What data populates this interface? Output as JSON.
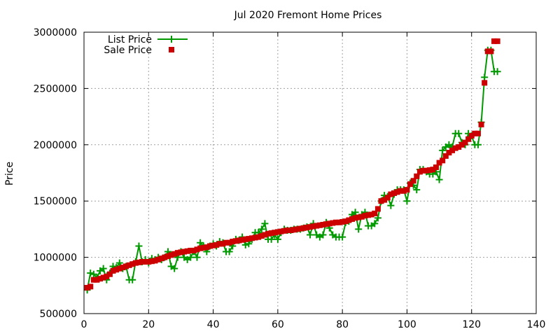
{
  "chart_data": {
    "type": "line",
    "title": "Jul 2020 Fremont Home Prices",
    "xlabel": "",
    "ylabel": "Price",
    "xlim": [
      0,
      140
    ],
    "ylim": [
      500000,
      3000000
    ],
    "x_ticks": [
      0,
      20,
      40,
      60,
      80,
      100,
      120,
      140
    ],
    "y_ticks": [
      500000,
      1000000,
      1500000,
      2000000,
      2500000,
      3000000
    ],
    "grid": true,
    "legend_position": "top-left",
    "series": [
      {
        "name": "List Price",
        "style": "line-with-plus-markers",
        "color": "#009900",
        "x": [
          1,
          2,
          3,
          4,
          5,
          6,
          7,
          8,
          9,
          10,
          11,
          12,
          13,
          14,
          15,
          16,
          17,
          18,
          19,
          20,
          21,
          22,
          23,
          24,
          25,
          26,
          27,
          28,
          29,
          30,
          31,
          32,
          33,
          34,
          35,
          36,
          37,
          38,
          39,
          40,
          41,
          42,
          43,
          44,
          45,
          46,
          47,
          48,
          49,
          50,
          51,
          52,
          53,
          54,
          55,
          56,
          57,
          58,
          59,
          60,
          61,
          62,
          63,
          64,
          65,
          66,
          67,
          68,
          69,
          70,
          71,
          72,
          73,
          74,
          75,
          76,
          77,
          78,
          79,
          80,
          81,
          82,
          83,
          84,
          85,
          86,
          87,
          88,
          89,
          90,
          91,
          92,
          93,
          94,
          95,
          96,
          97,
          98,
          99,
          100,
          101,
          102,
          103,
          104,
          105,
          106,
          107,
          108,
          109,
          110,
          111,
          112,
          113,
          114,
          115,
          116,
          117,
          118,
          119,
          120,
          121,
          122,
          123,
          124,
          125,
          126,
          127,
          128
        ],
        "values": [
          710000,
          860000,
          850000,
          820000,
          880000,
          900000,
          800000,
          860000,
          920000,
          910000,
          950000,
          900000,
          920000,
          800000,
          800000,
          960000,
          1100000,
          960000,
          980000,
          950000,
          990000,
          980000,
          1000000,
          980000,
          1000000,
          1050000,
          920000,
          900000,
          1000000,
          1050000,
          1000000,
          980000,
          1000000,
          1050000,
          1000000,
          1130000,
          1100000,
          1050000,
          1100000,
          1120000,
          1100000,
          1140000,
          1130000,
          1050000,
          1050000,
          1100000,
          1160000,
          1150000,
          1180000,
          1110000,
          1120000,
          1160000,
          1220000,
          1220000,
          1250000,
          1300000,
          1160000,
          1160000,
          1200000,
          1160000,
          1220000,
          1250000,
          1240000,
          1240000,
          1250000,
          1250000,
          1250000,
          1260000,
          1270000,
          1200000,
          1300000,
          1200000,
          1180000,
          1200000,
          1310000,
          1260000,
          1200000,
          1180000,
          1180000,
          1180000,
          1310000,
          1320000,
          1380000,
          1400000,
          1250000,
          1380000,
          1400000,
          1280000,
          1280000,
          1300000,
          1350000,
          1500000,
          1550000,
          1540000,
          1460000,
          1560000,
          1600000,
          1600000,
          1600000,
          1500000,
          1660000,
          1640000,
          1600000,
          1780000,
          1780000,
          1760000,
          1740000,
          1740000,
          1760000,
          1690000,
          1950000,
          1980000,
          2000000,
          1980000,
          2100000,
          2100000,
          2020000,
          2000000,
          2100000,
          2080000,
          2000000,
          2000000,
          2200000,
          2600000,
          2840000,
          2840000,
          2650000,
          2650000
        ]
      },
      {
        "name": "Sale Price",
        "style": "square-markers",
        "color": "#cc0000",
        "x": [
          1,
          2,
          3,
          4,
          5,
          6,
          7,
          8,
          9,
          10,
          11,
          12,
          13,
          14,
          15,
          16,
          17,
          18,
          19,
          20,
          21,
          22,
          23,
          24,
          25,
          26,
          27,
          28,
          29,
          30,
          31,
          32,
          33,
          34,
          35,
          36,
          37,
          38,
          39,
          40,
          41,
          42,
          43,
          44,
          45,
          46,
          47,
          48,
          49,
          50,
          51,
          52,
          53,
          54,
          55,
          56,
          57,
          58,
          59,
          60,
          61,
          62,
          63,
          64,
          65,
          66,
          67,
          68,
          69,
          70,
          71,
          72,
          73,
          74,
          75,
          76,
          77,
          78,
          79,
          80,
          81,
          82,
          83,
          84,
          85,
          86,
          87,
          88,
          89,
          90,
          91,
          92,
          93,
          94,
          95,
          96,
          97,
          98,
          99,
          100,
          101,
          102,
          103,
          104,
          105,
          106,
          107,
          108,
          109,
          110,
          111,
          112,
          113,
          114,
          115,
          116,
          117,
          118,
          119,
          120,
          121,
          122,
          123,
          124,
          125,
          126,
          127,
          128
        ],
        "values": [
          730000,
          740000,
          800000,
          800000,
          810000,
          820000,
          830000,
          850000,
          880000,
          890000,
          900000,
          910000,
          920000,
          930000,
          940000,
          950000,
          955000,
          960000,
          960000,
          960000,
          965000,
          970000,
          980000,
          990000,
          1000000,
          1010000,
          1020000,
          1030000,
          1040000,
          1045000,
          1050000,
          1055000,
          1060000,
          1060000,
          1070000,
          1080000,
          1085000,
          1090000,
          1100000,
          1105000,
          1110000,
          1120000,
          1120000,
          1130000,
          1130000,
          1140000,
          1145000,
          1150000,
          1155000,
          1160000,
          1165000,
          1170000,
          1175000,
          1180000,
          1190000,
          1200000,
          1210000,
          1215000,
          1220000,
          1225000,
          1230000,
          1235000,
          1240000,
          1240000,
          1245000,
          1250000,
          1255000,
          1260000,
          1265000,
          1270000,
          1275000,
          1280000,
          1285000,
          1290000,
          1295000,
          1300000,
          1305000,
          1310000,
          1310000,
          1315000,
          1320000,
          1330000,
          1340000,
          1350000,
          1355000,
          1360000,
          1370000,
          1375000,
          1380000,
          1390000,
          1430000,
          1500000,
          1510000,
          1530000,
          1560000,
          1570000,
          1580000,
          1590000,
          1590000,
          1600000,
          1650000,
          1680000,
          1720000,
          1760000,
          1770000,
          1770000,
          1775000,
          1780000,
          1800000,
          1840000,
          1860000,
          1900000,
          1930000,
          1950000,
          1970000,
          1980000,
          2000000,
          2020000,
          2050000,
          2080000,
          2100000,
          2100000,
          2180000,
          2550000,
          2830000,
          2830000,
          2920000,
          2920000
        ]
      }
    ]
  }
}
